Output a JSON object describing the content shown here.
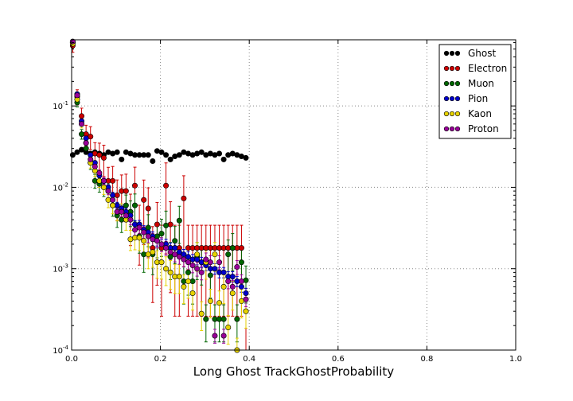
{
  "chart_data": {
    "type": "scatter",
    "title": "",
    "xlabel": "Long Ghost TrackGhostProbability",
    "ylabel": "",
    "xlim": [
      0.0,
      1.0
    ],
    "ylim": [
      0.0001,
      0.65
    ],
    "yscale": "log",
    "grid": true,
    "legend_position": "top-right",
    "x_ticks": [
      "0.0",
      "0.2",
      "0.4",
      "0.6",
      "0.8",
      "1.0"
    ],
    "y_ticks": [
      {
        "value": 0.0001,
        "base": "10",
        "exp": "-4"
      },
      {
        "value": 0.001,
        "base": "10",
        "exp": "-3"
      },
      {
        "value": 0.01,
        "base": "10",
        "exp": "-2"
      },
      {
        "value": 0.1,
        "base": "10",
        "exp": "-1"
      }
    ],
    "x": [
      0.0025,
      0.0125,
      0.0225,
      0.0325,
      0.0425,
      0.0525,
      0.0625,
      0.0725,
      0.0825,
      0.0925,
      0.1025,
      0.1125,
      0.1225,
      0.1325,
      0.1425,
      0.1525,
      0.1625,
      0.1725,
      0.1825,
      0.1925,
      0.2025,
      0.2125,
      0.2225,
      0.2325,
      0.2425,
      0.2525,
      0.2625,
      0.2725,
      0.2825,
      0.2925,
      0.3025,
      0.3125,
      0.3225,
      0.3325,
      0.3425,
      0.3525,
      0.3625,
      0.3725,
      0.3825,
      0.3925
    ],
    "series": [
      {
        "name": "Ghost",
        "color": "#000000",
        "values": [
          0.025,
          0.027,
          0.029,
          0.027,
          0.026,
          0.027,
          0.026,
          0.025,
          0.027,
          0.026,
          0.027,
          0.022,
          0.027,
          0.026,
          0.025,
          0.025,
          0.025,
          0.025,
          0.021,
          0.028,
          0.027,
          0.025,
          0.022,
          0.024,
          0.025,
          0.027,
          0.026,
          0.025,
          0.026,
          0.027,
          0.025,
          0.026,
          0.025,
          0.026,
          0.022,
          0.025,
          0.026,
          0.025,
          0.024,
          0.023
        ]
      },
      {
        "name": "Electron",
        "color": "#cc0000",
        "values": [
          0.55,
          0.13,
          0.075,
          0.045,
          0.042,
          0.026,
          0.025,
          0.023,
          0.012,
          0.012,
          0.008,
          0.009,
          0.009,
          0.005,
          0.0105,
          0.0035,
          0.007,
          0.0055,
          0.0018,
          0.0035,
          0.0018,
          0.0105,
          0.0035,
          0.0018,
          0.0018,
          0.0073,
          0.0018,
          0.0018,
          0.0018,
          0.0018,
          0.0018,
          0.0018,
          0.0018,
          0.0018,
          0.0018,
          0.0018,
          0.0018,
          0.0018,
          0.0018,
          0.0003
        ]
      },
      {
        "name": "Muon",
        "color": "#006600",
        "values": [
          0.6,
          0.11,
          0.045,
          0.03,
          0.02,
          0.012,
          0.011,
          0.01,
          0.009,
          0.006,
          0.0045,
          0.004,
          0.006,
          0.005,
          0.006,
          0.0025,
          0.0015,
          0.0032,
          0.0015,
          0.0025,
          0.0027,
          0.0034,
          0.0014,
          0.0022,
          0.0039,
          0.0007,
          0.0009,
          0.0007,
          0.0014,
          0.0012,
          0.00024,
          0.00083,
          0.00024,
          0.00024,
          0.00024,
          0.0015,
          0.0018,
          0.00024,
          0.0012,
          0.00072
        ]
      },
      {
        "name": "Pion",
        "color": "#0000cc",
        "values": [
          0.6,
          0.14,
          0.065,
          0.04,
          0.025,
          0.02,
          0.014,
          0.012,
          0.01,
          0.008,
          0.006,
          0.0055,
          0.005,
          0.0045,
          0.0035,
          0.0035,
          0.003,
          0.0028,
          0.0025,
          0.0022,
          0.002,
          0.002,
          0.0018,
          0.0018,
          0.0016,
          0.0015,
          0.0014,
          0.0013,
          0.0013,
          0.0012,
          0.0011,
          0.001,
          0.001,
          0.0009,
          0.0009,
          0.0008,
          0.0008,
          0.0007,
          0.0006,
          0.0005
        ]
      },
      {
        "name": "Kaon",
        "color": "#e6d200",
        "values": [
          0.58,
          0.12,
          0.06,
          0.035,
          0.02,
          0.016,
          0.012,
          0.01,
          0.007,
          0.006,
          0.005,
          0.005,
          0.004,
          0.0023,
          0.0024,
          0.0024,
          0.0022,
          0.0015,
          0.0016,
          0.0012,
          0.0012,
          0.001,
          0.0009,
          0.0008,
          0.0008,
          0.0006,
          0.0007,
          0.0005,
          0.0015,
          0.00028,
          0.0012,
          0.0004,
          0.0015,
          0.00038,
          0.0006,
          0.00019,
          0.0005,
          0.0001,
          0.0004,
          0.0003
        ]
      },
      {
        "name": "Proton",
        "color": "#990099",
        "values": [
          0.62,
          0.135,
          0.06,
          0.035,
          0.022,
          0.018,
          0.015,
          0.012,
          0.009,
          0.007,
          0.005,
          0.005,
          0.0045,
          0.004,
          0.003,
          0.0032,
          0.0028,
          0.0025,
          0.0023,
          0.0022,
          0.002,
          0.0018,
          0.0016,
          0.0015,
          0.0014,
          0.0013,
          0.0012,
          0.0011,
          0.001,
          0.0009,
          0.0013,
          0.0012,
          0.00015,
          0.0012,
          0.00015,
          0.0007,
          0.0006,
          0.00105,
          0.0007,
          0.00042
        ]
      }
    ]
  }
}
